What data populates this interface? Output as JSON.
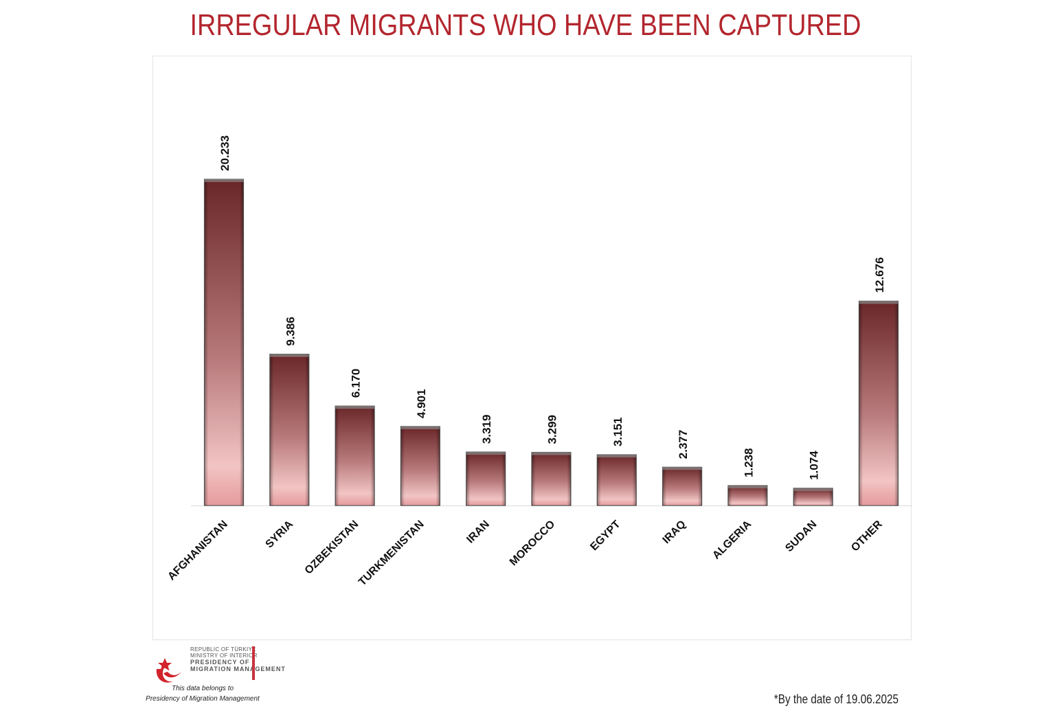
{
  "title": "IRREGULAR MIGRANTS WHO HAVE BEEN CAPTURED",
  "footnote": "*By the date of 19.06.2025",
  "logo": {
    "lines": [
      "REPUBLIC OF TÜRKIYE",
      "MINISTRY OF INTERIOR",
      "PRESIDENCY OF",
      "MIGRATION MANAGEMENT"
    ],
    "caption_1": "This data belongs to",
    "caption_2": "Presidency of Migration Management",
    "accent_color": "#c8323a"
  },
  "colors": {
    "title": "#b3262e",
    "bar_dark": "#6e2b2e",
    "bar_light": "#f0b8b8"
  },
  "chart_data": {
    "type": "bar",
    "title": "IRREGULAR MIGRANTS WHO HAVE BEEN CAPTURED",
    "categories": [
      "AFGHANISTAN",
      "SYRIA",
      "OZBEKISTAN",
      "TURKMENISTAN",
      "IRAN",
      "MOROCCO",
      "EGYPT",
      "IRAQ",
      "ALGERIA",
      "SUDAN",
      "OTHER"
    ],
    "values": [
      20233,
      9386,
      6170,
      4901,
      3319,
      3299,
      3151,
      2377,
      1238,
      1074,
      12676
    ],
    "value_labels": [
      "20.233",
      "9.386",
      "6.170",
      "4.901",
      "3.319",
      "3.299",
      "3.151",
      "2.377",
      "1.238",
      "1.074",
      "12.676"
    ],
    "xlabel": "",
    "ylabel": "",
    "ylim": [
      0,
      20233
    ],
    "grid": false,
    "legend": "none"
  }
}
